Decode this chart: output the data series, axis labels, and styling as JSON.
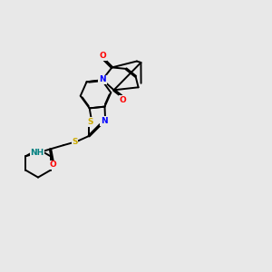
{
  "background_color": "#e8e8e8",
  "bond_color": "#000000",
  "atom_colors": {
    "N": "#0000ff",
    "O": "#ff0000",
    "S": "#ccaa00",
    "H": "#008080",
    "C": "#000000"
  },
  "line_width": 1.4,
  "figsize": [
    3.0,
    3.0
  ],
  "dpi": 100
}
